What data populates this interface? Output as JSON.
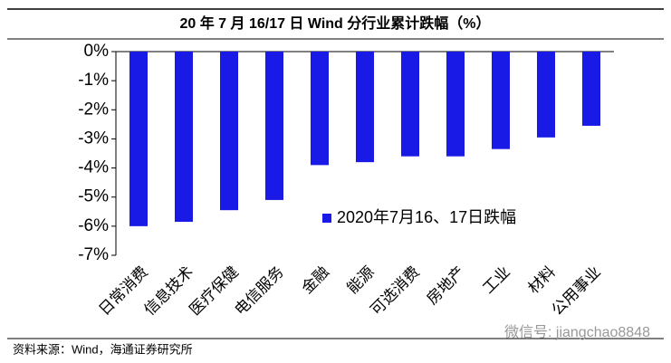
{
  "chart_data": {
    "type": "bar",
    "title": "20 年 7 月 16/17 日 Wind 分行业累计跌幅（%）",
    "categories": [
      "日常消费",
      "信息技术",
      "医疗保健",
      "电信服务",
      "金融",
      "能源",
      "可选消费",
      "房地产",
      "工业",
      "材料",
      "公用事业"
    ],
    "series": [
      {
        "name": "2020年7月16、17日跌幅",
        "color": "#1a1ae6",
        "values": [
          -6.0,
          -5.85,
          -5.45,
          -5.1,
          -3.9,
          -3.8,
          -3.6,
          -3.6,
          -3.35,
          -2.95,
          -2.55
        ]
      }
    ],
    "ylim": [
      -7,
      0
    ],
    "yticks": [
      {
        "value": 0,
        "label": "0%"
      },
      {
        "value": -1,
        "label": "-1%"
      },
      {
        "value": -2,
        "label": "-2%"
      },
      {
        "value": -3,
        "label": "-3%"
      },
      {
        "value": -4,
        "label": "-4%"
      },
      {
        "value": -5,
        "label": "-5%"
      },
      {
        "value": -6,
        "label": "-6%"
      },
      {
        "value": -7,
        "label": "-7%"
      }
    ],
    "grid": false,
    "source": "资料来源：Wind，海通证券研究所",
    "watermark": "微信号: jiangchao8848"
  }
}
